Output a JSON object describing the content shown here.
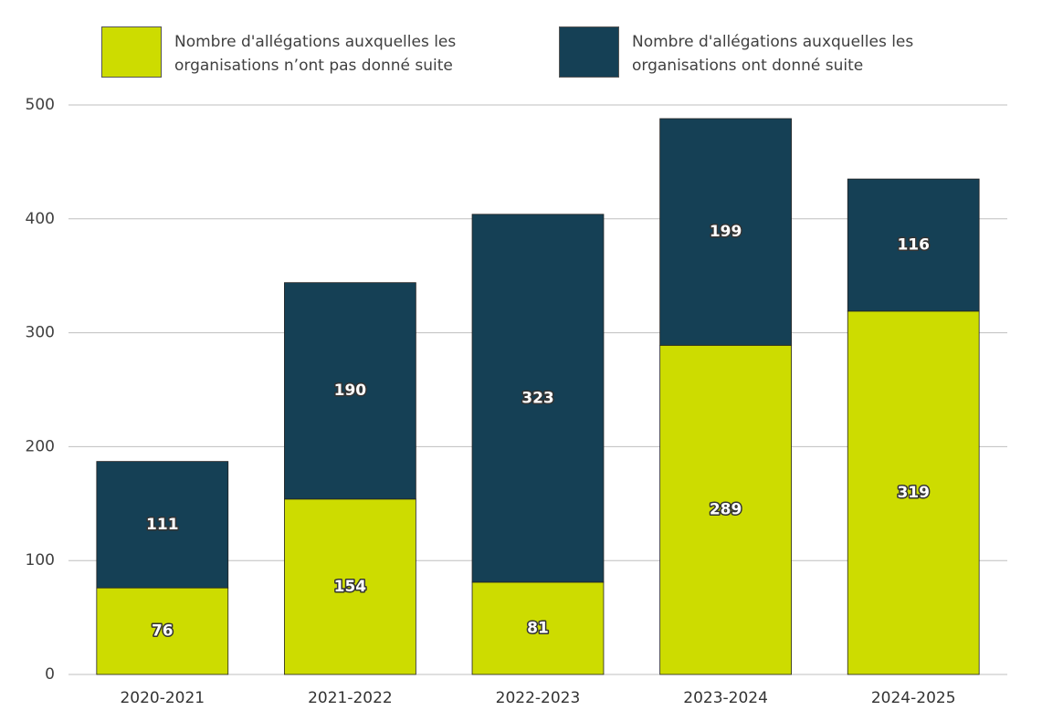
{
  "chart_data": {
    "type": "stacked_bar",
    "categories": [
      "2020-2021",
      "2021-2022",
      "2022-2023",
      "2023-2024",
      "2024-2025"
    ],
    "series": [
      {
        "name": "Nombre d'allégations auxquelles les organisations n’ont pas donné suite",
        "color": "#cddc00",
        "values": [
          76,
          154,
          81,
          289,
          319
        ]
      },
      {
        "name": "Nombre d'allégations  auxquelles les organisations ont donné suite",
        "color": "#154055",
        "values": [
          111,
          190,
          323,
          199,
          116
        ]
      }
    ],
    "ylim": [
      0,
      500
    ],
    "yticks": [
      0,
      100,
      200,
      300,
      400,
      500
    ],
    "grid": true,
    "legend": "top"
  }
}
